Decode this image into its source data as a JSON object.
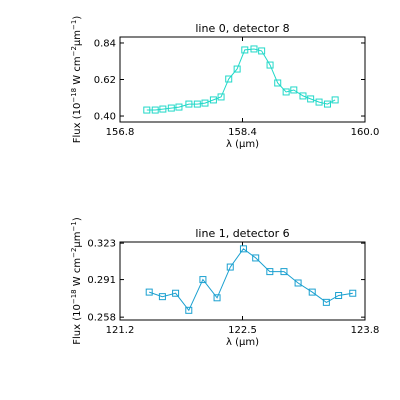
{
  "chart_data": [
    {
      "type": "line",
      "title": "line 0, detector 8",
      "xlabel": "λ (μm)",
      "ylabel_parts": [
        "Flux (10",
        "−18",
        " W cm",
        "−2",
        "μm",
        "−1",
        ")"
      ],
      "color": "#20d8c8",
      "x": [
        157.15,
        157.26,
        157.36,
        157.47,
        157.57,
        157.7,
        157.81,
        157.91,
        158.02,
        158.12,
        158.22,
        158.33,
        158.43,
        158.55,
        158.65,
        158.76,
        158.86,
        158.97,
        159.07,
        159.19,
        159.29,
        159.4,
        159.51,
        159.61
      ],
      "values": [
        0.436,
        0.436,
        0.442,
        0.448,
        0.454,
        0.472,
        0.472,
        0.478,
        0.497,
        0.515,
        0.623,
        0.683,
        0.798,
        0.804,
        0.792,
        0.707,
        0.599,
        0.545,
        0.557,
        0.521,
        0.503,
        0.484,
        0.472,
        0.497
      ],
      "xlim": [
        156.8,
        160.0
      ],
      "xticks": [
        156.8,
        158.4,
        {
          "value": 160.0,
          "label": "160.0"
        }
      ],
      "ylim": [
        0.364,
        0.876
      ],
      "yticks": [
        {
          "value": 0.4,
          "label": "0.40"
        },
        0.62,
        0.84
      ]
    },
    {
      "type": "line",
      "title": "line 1, detector 6",
      "xlabel": "λ (μm)",
      "ylabel_parts": [
        "Flux (10",
        "−18",
        " W cm",
        "−2",
        "μm",
        "−1",
        ")"
      ],
      "color": "#1aa0d0",
      "x": [
        121.51,
        121.65,
        121.79,
        121.93,
        122.08,
        122.23,
        122.37,
        122.51,
        122.64,
        122.79,
        122.94,
        123.09,
        123.24,
        123.39,
        123.52,
        123.67
      ],
      "values": [
        0.28,
        0.276,
        0.279,
        0.264,
        0.291,
        0.275,
        0.302,
        0.318,
        0.31,
        0.298,
        0.298,
        0.288,
        0.28,
        0.271,
        0.277,
        0.279
      ],
      "xlim": [
        121.2,
        123.8
      ],
      "xticks": [
        121.2,
        122.5,
        123.8
      ],
      "ylim": [
        0.2555,
        0.324
      ],
      "yticks": [
        0.258,
        0.291,
        0.323
      ]
    }
  ]
}
